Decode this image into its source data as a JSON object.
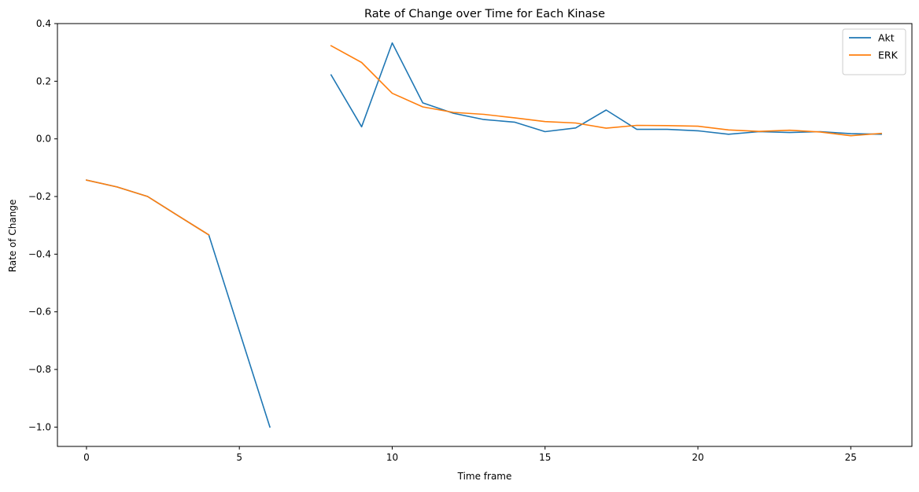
{
  "chart_data": {
    "type": "line",
    "title": "Rate of Change over Time for Each Kinase",
    "xlabel": "Time frame",
    "ylabel": "Rate of Change",
    "xlim": [
      -0.95,
      27.0
    ],
    "ylim": [
      -1.067,
      0.4
    ],
    "xticks": [
      0,
      5,
      10,
      15,
      20,
      25
    ],
    "xtick_labels": [
      "0",
      "5",
      "10",
      "15",
      "20",
      "25"
    ],
    "yticks": [
      0.4,
      0.2,
      0.0,
      -0.2,
      -0.4,
      -0.6,
      -0.8,
      -1.0
    ],
    "ytick_labels": [
      "0.4",
      "0.2",
      "0.0",
      "−0.2",
      "−0.4",
      "−0.6",
      "−0.8",
      "−1.0"
    ],
    "grid": false,
    "legend_position": "top-right",
    "series": [
      {
        "name": "Akt",
        "color": "#1f77b4",
        "x": [
          0,
          1,
          2,
          3,
          4,
          5,
          6,
          7,
          8,
          9,
          10,
          11,
          12,
          13,
          14,
          15,
          16,
          17,
          18,
          19,
          20,
          21,
          22,
          23,
          24,
          25,
          26
        ],
        "values": [
          -0.143,
          -0.167,
          -0.2,
          -0.267,
          -0.333,
          -0.667,
          -1.0,
          null,
          0.222,
          0.042,
          0.333,
          0.125,
          0.089,
          0.067,
          0.058,
          0.025,
          0.038,
          0.1,
          0.033,
          0.033,
          0.028,
          0.016,
          0.025,
          0.022,
          0.025,
          0.018,
          0.016
        ]
      },
      {
        "name": "ERK",
        "color": "#ff7f0e",
        "x": [
          0,
          1,
          2,
          3,
          4,
          5,
          6,
          7,
          8,
          9,
          10,
          11,
          12,
          13,
          14,
          15,
          16,
          17,
          18,
          19,
          20,
          21,
          22,
          23,
          24,
          25,
          26
        ],
        "values": [
          -0.143,
          -0.167,
          -0.2,
          -0.267,
          -0.333,
          null,
          null,
          null,
          0.323,
          0.265,
          0.158,
          0.111,
          0.092,
          0.085,
          0.073,
          0.06,
          0.055,
          0.037,
          0.047,
          0.046,
          0.044,
          0.031,
          0.026,
          0.03,
          0.024,
          0.011,
          0.019
        ]
      }
    ]
  }
}
